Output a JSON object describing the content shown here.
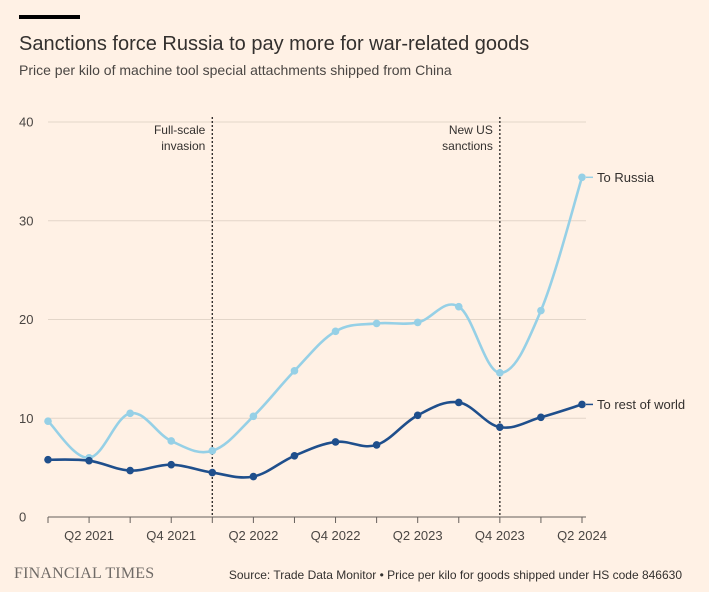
{
  "header": {
    "title": "Sanctions force Russia to pay more for war-related goods",
    "subtitle": "Price per kilo of machine tool special attachments shipped from China"
  },
  "footer": {
    "logo": "FINANCIAL TIMES",
    "source": "Source: Trade Data Monitor • Price per kilo for goods shipped under HS code 846630"
  },
  "chart_data": {
    "type": "line",
    "title": "Sanctions force Russia to pay more for war-related goods",
    "subtitle": "Price per kilo of machine tool special attachments shipped from China",
    "x": [
      "Q1 2021",
      "Q2 2021",
      "Q3 2021",
      "Q4 2021",
      "Q1 2022",
      "Q2 2022",
      "Q3 2022",
      "Q4 2022",
      "Q1 2023",
      "Q2 2023",
      "Q3 2023",
      "Q4 2023",
      "Q1 2024",
      "Q2 2024"
    ],
    "x_tick_labels": [
      "Q2 2021",
      "Q4 2021",
      "Q2 2022",
      "Q4 2022",
      "Q2 2023",
      "Q4 2023",
      "Q2 2024"
    ],
    "ylim": [
      0,
      40
    ],
    "yticks": [
      0,
      10,
      20,
      30,
      40
    ],
    "grid": true,
    "series": [
      {
        "name": "To Russia",
        "color": "#96d0e6",
        "values": [
          9.7,
          6.0,
          10.5,
          7.7,
          6.7,
          10.2,
          14.8,
          18.8,
          19.6,
          19.7,
          21.3,
          14.6,
          20.9,
          34.4
        ]
      },
      {
        "name": "To rest of world",
        "color": "#1f4f8c",
        "values": [
          5.8,
          5.7,
          4.7,
          5.3,
          4.5,
          4.1,
          6.2,
          7.6,
          7.3,
          10.3,
          11.6,
          9.1,
          10.1,
          11.4
        ]
      }
    ],
    "annotations": [
      {
        "at": "Q1 2022",
        "lines": [
          "Full-scale",
          "invasion"
        ]
      },
      {
        "at": "Q4 2023",
        "lines": [
          "New US",
          "sanctions"
        ]
      }
    ]
  }
}
